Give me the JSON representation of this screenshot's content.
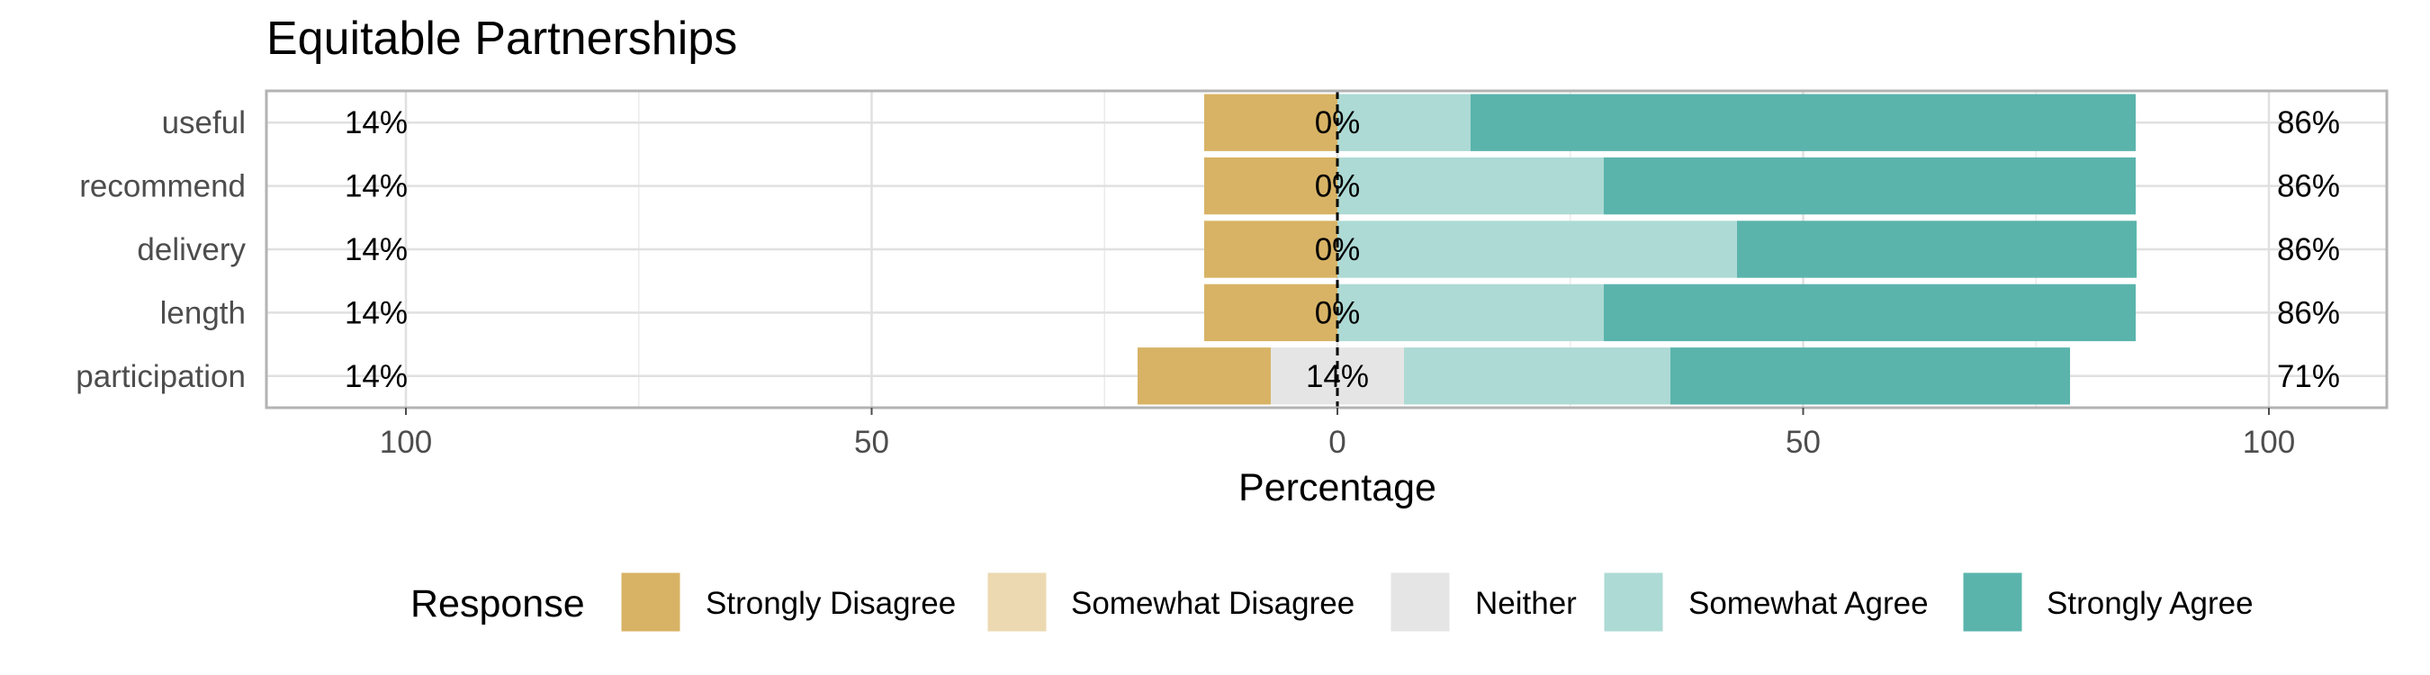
{
  "chart_data": {
    "type": "bar",
    "orientation": "horizontal",
    "stacked": "diverging",
    "title": "Equitable Partnerships",
    "xlabel": "Percentage",
    "ylabel": "",
    "xlim": [
      -115,
      111
    ],
    "xticks": [
      -100,
      -50,
      0,
      50,
      100
    ],
    "xtick_labels": [
      "100",
      "50",
      "0",
      "50",
      "100"
    ],
    "grid": true,
    "legend_position": "bottom",
    "legend_title": "Response",
    "categories": [
      "useful",
      "recommend",
      "delivery",
      "length",
      "participation"
    ],
    "series": [
      {
        "name": "Strongly Disagree",
        "color": "#D8B365",
        "values": [
          14.3,
          14.3,
          14.3,
          14.3,
          14.3
        ]
      },
      {
        "name": "Somewhat Disagree",
        "color": "#ECD9B2",
        "values": [
          0,
          0,
          0,
          0,
          0
        ]
      },
      {
        "name": "Neither",
        "color": "#E5E5E5",
        "values": [
          0,
          0,
          0,
          0,
          14.3
        ]
      },
      {
        "name": "Somewhat Agree",
        "color": "#ADDAD5",
        "values": [
          14.3,
          28.6,
          42.9,
          28.6,
          28.6
        ]
      },
      {
        "name": "Strongly Agree",
        "color": "#5AB4AC",
        "values": [
          71.4,
          57.1,
          42.9,
          57.1,
          42.9
        ]
      }
    ],
    "low_labels": [
      "14%",
      "14%",
      "14%",
      "14%",
      "14%"
    ],
    "neutral_labels": [
      "0%",
      "0%",
      "0%",
      "0%",
      "14%"
    ],
    "high_labels": [
      "86%",
      "86%",
      "86%",
      "86%",
      "71%"
    ]
  }
}
